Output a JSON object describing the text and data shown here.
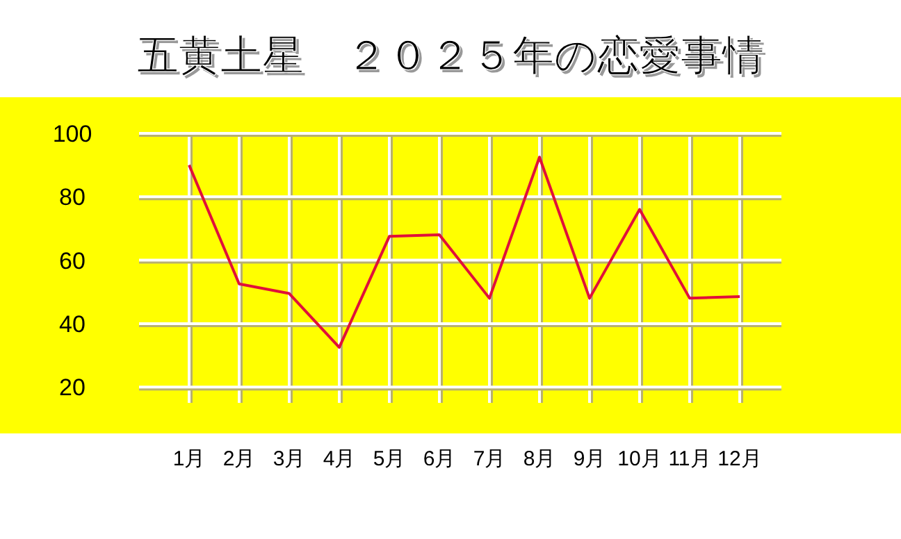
{
  "chart_data": {
    "type": "line",
    "title": "五黄土星　２０２５年の恋愛事情",
    "categories": [
      "1月",
      "2月",
      "3月",
      "4月",
      "5月",
      "6月",
      "7月",
      "8月",
      "9月",
      "10月",
      "11月",
      "12月"
    ],
    "values": [
      90,
      52.5,
      49.5,
      32.5,
      67.5,
      68,
      48,
      92.5,
      48,
      76,
      48,
      48.5
    ],
    "color": "#e0103a",
    "ylim": [
      15,
      100
    ],
    "yticks": [
      20,
      40,
      60,
      80,
      100
    ],
    "grid": true
  }
}
